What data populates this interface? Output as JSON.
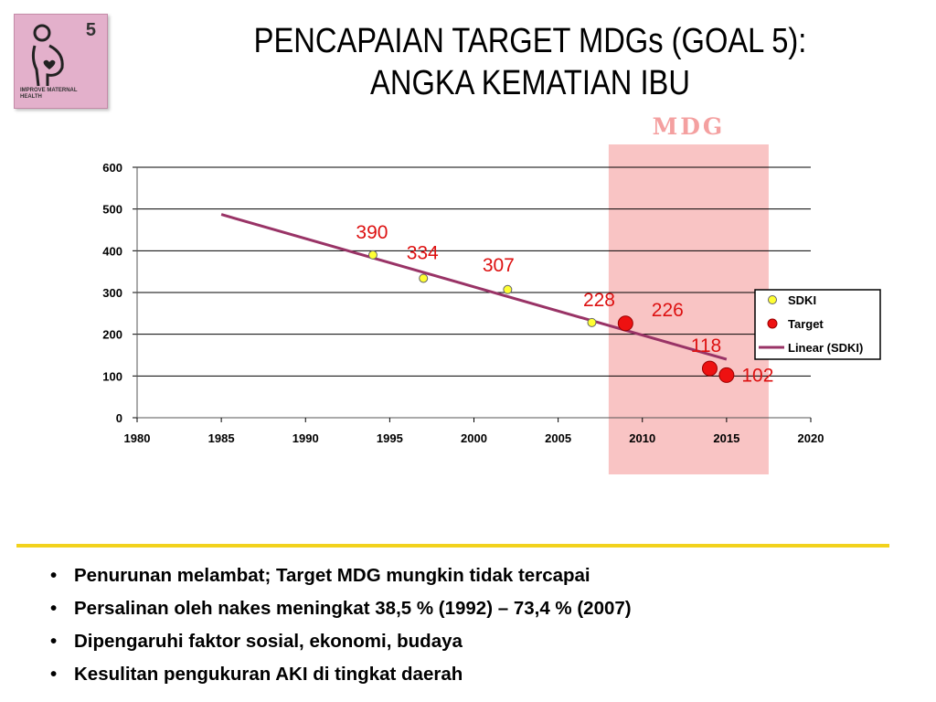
{
  "logo": {
    "number": "5",
    "caption_line1": "IMPROVE MATERNAL",
    "caption_line2": "HEALTH"
  },
  "title": {
    "line1": "PENCAPAIAN TARGET MDGs (GOAL 5):",
    "line2": "ANGKA KEMATIAN IBU"
  },
  "colors": {
    "sdki_marker": "#ffff33",
    "target_marker": "#ee1111",
    "trendline": "#993366",
    "mdg_band": "#f9c4c4",
    "mdg_label": "#f4a0a0",
    "data_label": "#dd1111",
    "divider": "#f2d21c"
  },
  "chart_data": {
    "type": "scatter",
    "xlim": [
      1980,
      2020
    ],
    "ylim": [
      0,
      600
    ],
    "x_ticks": [
      "1980",
      "1985",
      "1990",
      "1995",
      "2000",
      "2005",
      "2010",
      "2015",
      "2020"
    ],
    "y_ticks": [
      "0",
      "100",
      "200",
      "300",
      "400",
      "500",
      "600"
    ],
    "grid": true,
    "mdg_band": {
      "label": "MDG",
      "x_from": 2008,
      "x_to": 2017.5
    },
    "series": [
      {
        "name": "SDKI",
        "points": [
          {
            "x": 1994,
            "y": 390,
            "label": "390"
          },
          {
            "x": 1997,
            "y": 334,
            "label": "334"
          },
          {
            "x": 2002,
            "y": 307,
            "label": "307"
          },
          {
            "x": 2007,
            "y": 228,
            "label": "228"
          }
        ]
      },
      {
        "name": "Target",
        "points": [
          {
            "x": 2009,
            "y": 226,
            "label": "226"
          },
          {
            "x": 2014,
            "y": 118,
            "label": "118"
          },
          {
            "x": 2015,
            "y": 102,
            "label": "102"
          }
        ]
      }
    ],
    "trendline": {
      "name": "Linear (SDKI)",
      "x_from": 1985,
      "y_from": 487,
      "x_to": 2015,
      "y_to": 140
    },
    "legend": [
      "SDKI",
      "Target",
      "Linear (SDKI)"
    ],
    "legend_position": "right"
  },
  "bullets": [
    "Penurunan melambat; Target MDG mungkin tidak tercapai",
    "Persalinan oleh nakes meningkat 38,5 % (1992) – 73,4 % (2007)",
    "Dipengaruhi faktor sosial, ekonomi, budaya",
    "Kesulitan pengukuran AKI di tingkat daerah"
  ]
}
